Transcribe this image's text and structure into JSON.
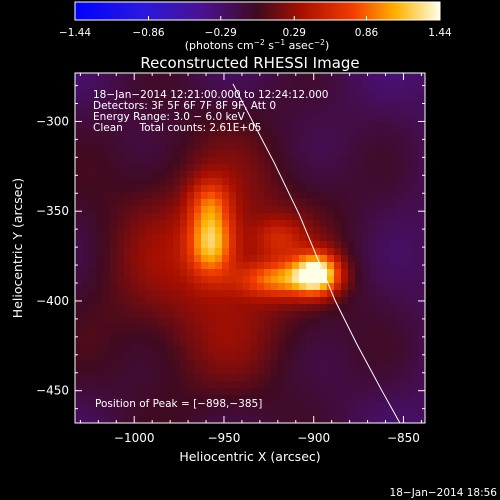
{
  "chart_data": {
    "type": "heatmap",
    "title": "Reconstructed RHESSI Image",
    "xlabel": "Heliocentric X (arcsec)",
    "ylabel": "Heliocentric Y (arcsec)",
    "xlim": [
      -1033,
      -838
    ],
    "ylim": [
      -468,
      -273
    ],
    "x_ticks": [
      -1000,
      -950,
      -900,
      -850
    ],
    "y_ticks": [
      -300,
      -350,
      -400,
      -450
    ],
    "x_tick_labels": [
      "−1000",
      "−950",
      "−900",
      "−850"
    ],
    "y_tick_labels": [
      "−300",
      "−350",
      "−400",
      "−450"
    ],
    "colorbar": {
      "min": -1.44,
      "max": 1.44,
      "ticks": [
        -1.44,
        -0.86,
        -0.29,
        0.29,
        0.86,
        1.44
      ],
      "tick_labels": [
        "−1.44",
        "−0.86",
        "−0.29",
        "0.29",
        "0.86",
        "1.44"
      ],
      "unit_parts": [
        "(photons cm",
        "−2",
        " s",
        "−1",
        " asec",
        "−2",
        ")"
      ],
      "colormap": "blue-purple-red-yellow-white"
    },
    "annotations": [
      "18−Jan−2014 12:21:00.000 to 12:24:12.000",
      "Detectors: 3F 5F 6F 7F 8F 9F, Att 0",
      "Energy Range: 3.0 − 6.0 keV",
      "Clean     Total counts: 2.61E+05"
    ],
    "peak_label": "Position of Peak = [−898,−385]",
    "peak": {
      "x": -898,
      "y": -385,
      "value": 1.44
    },
    "sources": [
      {
        "x": -898,
        "y": -385,
        "sx": 9,
        "sy": 8,
        "amp": 1.3
      },
      {
        "x": -920,
        "y": -388,
        "sx": 16,
        "sy": 7,
        "amp": 0.75
      },
      {
        "x": -957,
        "y": -368,
        "sx": 9,
        "sy": 13,
        "amp": 1.0
      },
      {
        "x": -958,
        "y": -345,
        "sx": 8,
        "sy": 10,
        "amp": 0.5
      },
      {
        "x": -920,
        "y": -365,
        "sx": 10,
        "sy": 8,
        "amp": 0.35
      },
      {
        "x": -955,
        "y": -380,
        "sx": 55,
        "sy": 60,
        "amp": 0.55
      }
    ],
    "limb_curve": {
      "x": [
        -945,
        -922,
        -908,
        -898,
        -888,
        -876,
        -862,
        -852
      ],
      "y": [
        -279,
        -323,
        -352,
        -376,
        -400,
        -424,
        -450,
        -468
      ]
    },
    "grid": false
  },
  "footer": {
    "date": "18−Jan−2014 18:56"
  }
}
